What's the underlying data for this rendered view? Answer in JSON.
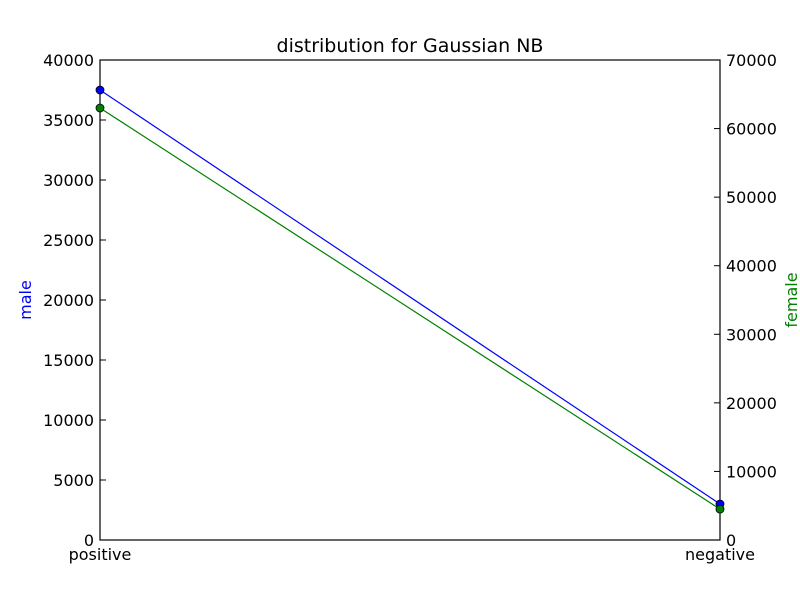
{
  "chart_data": {
    "type": "line",
    "title": "distribution for Gaussian NB",
    "categories": [
      "positive",
      "negative"
    ],
    "grid": false,
    "axes": {
      "left": {
        "label": "male",
        "color": "#0000ff",
        "ylim": [
          0,
          40000
        ],
        "ticks": [
          0,
          5000,
          10000,
          15000,
          20000,
          25000,
          30000,
          35000,
          40000
        ]
      },
      "right": {
        "label": "female",
        "color": "#008000",
        "ylim": [
          0,
          70000
        ],
        "ticks": [
          0,
          10000,
          20000,
          30000,
          40000,
          50000,
          60000,
          70000
        ]
      }
    },
    "series": [
      {
        "name": "male",
        "axis": "left",
        "color": "#0000ff",
        "values": [
          37500,
          3000
        ]
      },
      {
        "name": "female",
        "axis": "right",
        "color": "#008000",
        "values": [
          63000,
          4500
        ]
      }
    ]
  }
}
